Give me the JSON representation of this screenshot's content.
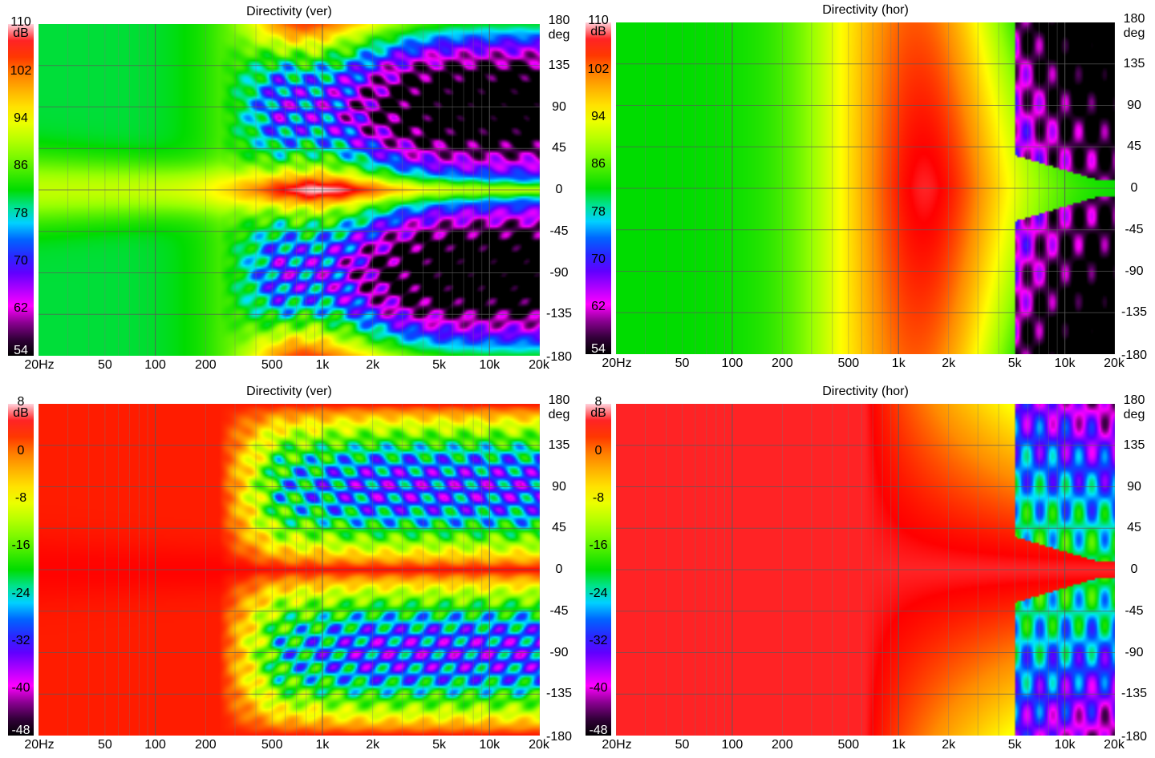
{
  "chart_data": [
    {
      "type": "heatmap",
      "title": "Directivity (ver)",
      "pattern": "ver",
      "norm": false,
      "colorbar": {
        "unit": "dB",
        "ticks": [
          "110",
          "102",
          "94",
          "86",
          "78",
          "70",
          "62",
          "54"
        ],
        "range": [
          54,
          110
        ]
      },
      "yaxis": {
        "unit": "deg",
        "ticks": [
          "180",
          "135",
          "90",
          "45",
          "0",
          "-45",
          "-90",
          "-135",
          "-180"
        ],
        "range": [
          -180,
          180
        ]
      },
      "xaxis": {
        "ticks": [
          "20Hz",
          "50",
          "100",
          "200",
          "500",
          "1k",
          "2k",
          "5k",
          "10k",
          "20k"
        ],
        "values": [
          20,
          50,
          100,
          200,
          500,
          1000,
          2000,
          5000,
          10000,
          20000
        ],
        "range": [
          20,
          20000
        ],
        "scale": "log"
      }
    },
    {
      "type": "heatmap",
      "title": "Directivity (hor)",
      "pattern": "hor",
      "norm": false,
      "colorbar": {
        "unit": "dB",
        "ticks": [
          "110",
          "102",
          "94",
          "86",
          "78",
          "70",
          "62",
          "54"
        ],
        "range": [
          54,
          110
        ]
      },
      "yaxis": {
        "unit": "deg",
        "ticks": [
          "180",
          "135",
          "90",
          "45",
          "0",
          "-45",
          "-90",
          "-135",
          "-180"
        ],
        "range": [
          -180,
          180
        ]
      },
      "xaxis": {
        "ticks": [
          "20Hz",
          "50",
          "100",
          "200",
          "500",
          "1k",
          "2k",
          "5k",
          "10k",
          "20k"
        ],
        "values": [
          20,
          50,
          100,
          200,
          500,
          1000,
          2000,
          5000,
          10000,
          20000
        ],
        "range": [
          20,
          20000
        ],
        "scale": "log"
      }
    },
    {
      "type": "heatmap",
      "title": "Directivity (ver)",
      "pattern": "ver",
      "norm": true,
      "colorbar": {
        "unit": "dB",
        "ticks": [
          "8",
          "0",
          "-8",
          "-16",
          "-24",
          "-32",
          "-40",
          "-48"
        ],
        "range": [
          -48,
          8
        ]
      },
      "yaxis": {
        "unit": "deg",
        "ticks": [
          "180",
          "135",
          "90",
          "45",
          "0",
          "-45",
          "-90",
          "-135",
          "-180"
        ],
        "range": [
          -180,
          180
        ]
      },
      "xaxis": {
        "ticks": [
          "20Hz",
          "50",
          "100",
          "200",
          "500",
          "1k",
          "2k",
          "5k",
          "10k",
          "20k"
        ],
        "values": [
          20,
          50,
          100,
          200,
          500,
          1000,
          2000,
          5000,
          10000,
          20000
        ],
        "range": [
          20,
          20000
        ],
        "scale": "log"
      }
    },
    {
      "type": "heatmap",
      "title": "Directivity (hor)",
      "pattern": "hor",
      "norm": true,
      "colorbar": {
        "unit": "dB",
        "ticks": [
          "8",
          "0",
          "-8",
          "-16",
          "-24",
          "-32",
          "-40",
          "-48"
        ],
        "range": [
          -48,
          8
        ]
      },
      "yaxis": {
        "unit": "deg",
        "ticks": [
          "180",
          "135",
          "90",
          "45",
          "0",
          "-45",
          "-90",
          "-135",
          "-180"
        ],
        "range": [
          -180,
          180
        ]
      },
      "xaxis": {
        "ticks": [
          "20Hz",
          "50",
          "100",
          "200",
          "500",
          "1k",
          "2k",
          "5k",
          "10k",
          "20k"
        ],
        "values": [
          20,
          50,
          100,
          200,
          500,
          1000,
          2000,
          5000,
          10000,
          20000
        ],
        "range": [
          20,
          20000
        ],
        "scale": "log"
      }
    }
  ]
}
